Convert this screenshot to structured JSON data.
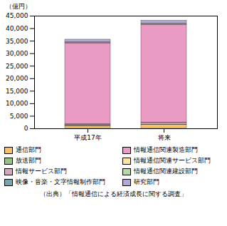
{
  "chart_data": {
    "type": "bar",
    "stacked": true,
    "categories": [
      "平成17年",
      "将来"
    ],
    "series": [
      {
        "name": "通信部門",
        "color": "#f5c26b",
        "values": [
          1100,
          1600
        ]
      },
      {
        "name": "放送部門",
        "color": "#92c47d",
        "values": [
          80,
          100
        ]
      },
      {
        "name": "情報サービス部門",
        "color": "#d5a6bd",
        "values": [
          500,
          700
        ]
      },
      {
        "name": "映像・音楽・文字情報制作部門",
        "color": "#76a5af",
        "values": [
          80,
          100
        ]
      },
      {
        "name": "情報通信関連製造部門",
        "color": "#ea9bc4",
        "values": [
          32400,
          39000
        ]
      },
      {
        "name": "情報通信関連サービス部門",
        "color": "#ffe599",
        "values": [
          150,
          200
        ]
      },
      {
        "name": "情報通信関連建設部門",
        "color": "#b6d7a8",
        "values": [
          200,
          250
        ]
      },
      {
        "name": "研究部門",
        "color": "#b4a7d6",
        "values": [
          1100,
          1200
        ]
      }
    ],
    "ylabel": "（億円）",
    "ylim": [
      0,
      45000
    ],
    "yticks": [
      0,
      {
        "value": 5000,
        "label": "5,000"
      },
      {
        "value": 10000,
        "label": "10,000"
      },
      {
        "value": 15000,
        "label": "15,000"
      },
      {
        "value": 20000,
        "label": "20,000"
      },
      {
        "value": 25000,
        "label": "25,000"
      },
      {
        "value": 30000,
        "label": "30,000"
      },
      {
        "value": 35000,
        "label": "35,000"
      },
      {
        "value": 40000,
        "label": "40,000"
      },
      {
        "value": 45000,
        "label": "45,000"
      }
    ],
    "grid": false,
    "legend": "bottom",
    "caption": "（出典）「情報通信による経済成長に関する調査」"
  }
}
